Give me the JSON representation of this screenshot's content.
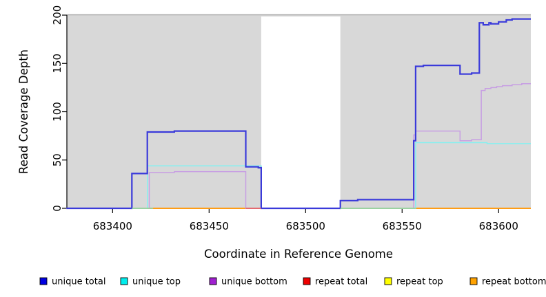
{
  "chart_data": {
    "type": "line",
    "subtype": "step-coverage",
    "title": "",
    "xlabel": "Coordinate in Reference Genome",
    "ylabel": "Read Coverage Depth",
    "xlim": [
      683376.3,
      683616.7
    ],
    "ylim": [
      0,
      200
    ],
    "x_ticks": [
      683400,
      683450,
      683500,
      683550,
      683600
    ],
    "x_tick_labels": [
      "683400",
      "683450",
      "683500",
      "683550",
      "683600"
    ],
    "y_ticks": [
      0,
      50,
      100,
      150,
      200
    ],
    "y_tick_labels": [
      "0",
      "50",
      "100",
      "150",
      "200"
    ],
    "grid": false,
    "legend_position": "bottom",
    "page_background": "#ffffff",
    "plot_background": "#d8d8d8",
    "plot_top_border_color": "#a9a9a9",
    "no_data_band": {
      "x0": 683477,
      "x1": 683518,
      "color": "#ffffff"
    },
    "series": [
      {
        "name": "unique total",
        "legend_color": "#0000e0",
        "line_color": "#3a3ada",
        "line_width": 2.2,
        "points": [
          [
            683376,
            0
          ],
          [
            683410,
            36
          ],
          [
            683418,
            79
          ],
          [
            683432,
            80
          ],
          [
            683469,
            43
          ],
          [
            683475.5,
            42
          ],
          [
            683477,
            0
          ],
          [
            683518,
            8
          ],
          [
            683527,
            9
          ],
          [
            683556,
            70
          ],
          [
            683557,
            147
          ],
          [
            683561,
            148
          ],
          [
            683580,
            139
          ],
          [
            683586,
            140
          ],
          [
            683590,
            192
          ],
          [
            683592,
            190
          ],
          [
            683595,
            192
          ],
          [
            683596,
            191
          ],
          [
            683600,
            193
          ],
          [
            683604,
            195
          ],
          [
            683607,
            196
          ],
          [
            683616.7,
            196
          ]
        ]
      },
      {
        "name": "unique top",
        "legend_color": "#00eded",
        "line_color": "#84f0f0",
        "line_width": 1.5,
        "points": [
          [
            683376,
            0
          ],
          [
            683418,
            44
          ],
          [
            683477,
            0
          ],
          [
            683557,
            68
          ],
          [
            683594,
            67
          ],
          [
            683616.7,
            67
          ]
        ]
      },
      {
        "name": "unique bottom",
        "legend_color": "#a020d0",
        "line_color": "#c79ee3",
        "line_width": 1.5,
        "points": [
          [
            683376,
            0
          ],
          [
            683419,
            37
          ],
          [
            683432,
            38
          ],
          [
            683469,
            0
          ],
          [
            683556,
            76
          ],
          [
            683557,
            80
          ],
          [
            683580,
            70
          ],
          [
            683586,
            71
          ],
          [
            683591,
            122
          ],
          [
            683593,
            124
          ],
          [
            683596,
            125
          ],
          [
            683599,
            126
          ],
          [
            683602,
            127
          ],
          [
            683607,
            128
          ],
          [
            683612,
            129
          ],
          [
            683616.7,
            129
          ]
        ]
      },
      {
        "name": "repeat total",
        "legend_color": "#ee0000",
        "line_color": "#ee2222",
        "line_width": 1.4,
        "points": [
          [
            683376,
            0
          ],
          [
            683616.7,
            0
          ]
        ]
      },
      {
        "name": "repeat top",
        "legend_color": "#ffff00",
        "line_color": "#ffff00",
        "line_width": 1.4,
        "points": [
          [
            683376,
            0
          ],
          [
            683616.7,
            0
          ]
        ]
      },
      {
        "name": "repeat bottom",
        "legend_color": "#ffa200",
        "line_color": "#ff9d15",
        "line_width": 2,
        "points": [
          [
            683376,
            0
          ],
          [
            683616.7,
            0
          ]
        ]
      }
    ],
    "draw_order": [
      "repeat top",
      "repeat total",
      "repeat bottom",
      "unique bottom",
      "unique top",
      "unique total"
    ],
    "zero_line_blend_segments": [
      {
        "x0": 683410,
        "x1": 683421,
        "color": "#96d39e",
        "y": 0
      },
      {
        "x0": 683469,
        "x1": 683477,
        "color": "#e4636f",
        "y": 0
      },
      {
        "x0": 683518,
        "x1": 683557,
        "color": "#96d39e",
        "y": 0
      }
    ],
    "legend_items": [
      "unique total",
      "unique top",
      "unique bottom",
      "repeat total",
      "repeat top",
      "repeat bottom"
    ]
  }
}
